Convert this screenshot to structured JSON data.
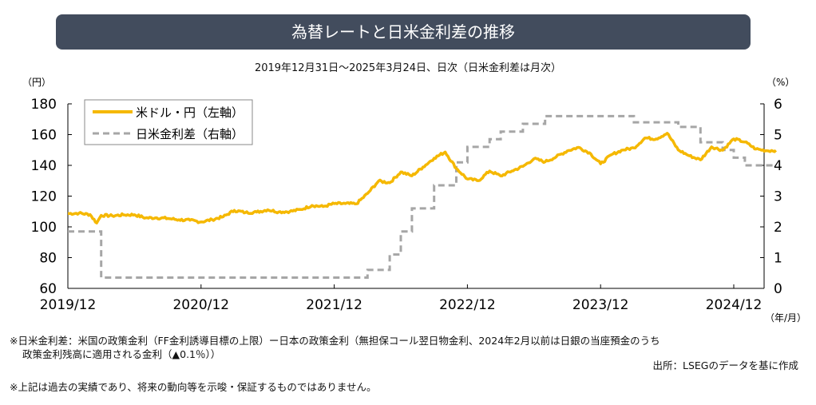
{
  "title": "為替レートと日米金利差の推移",
  "subtitle": "2019年12月31日～2025年3月24日、日次（日米金利差は月次）",
  "notes": {
    "line1": "※日米金利差：米国の政策金利（FF金利誘導目標の上限）ー日本の政策金利（無担保コール翌日物金利、2024年2月以前は日銀の当座預金のうち",
    "line2": "政策金利残高に適用される金利（▲0.1％））",
    "source": "出所：LSEGのデータを基に作成",
    "disclaimer": "※上記は過去の実績であり、将来の動向等を示唆・保証するものではありません。"
  },
  "chart_data": {
    "type": "line",
    "left_unit": "（円）",
    "right_unit": "（%）",
    "x_unit": "（年/月）",
    "ylim_left": [
      60,
      180
    ],
    "yticks_left": [
      "60",
      "80",
      "100",
      "120",
      "140",
      "160",
      "180"
    ],
    "ylim_right": [
      0,
      6
    ],
    "yticks_right": [
      "0",
      "1",
      "2",
      "3",
      "4",
      "5",
      "6"
    ],
    "xticks": [
      "2019/12",
      "2020/12",
      "2021/12",
      "2022/12",
      "2023/12",
      "2024/12"
    ],
    "x_range_months": [
      0,
      63.8
    ],
    "legend": {
      "placement": "top-left",
      "entries": [
        "米ドル・円（左軸）",
        "日米金利差（右軸）"
      ]
    },
    "colors": {
      "usdjpy": "#f5b800",
      "diff": "#a6a6a6"
    },
    "series": [
      {
        "name": "米ドル・円（左軸）",
        "axis": "left",
        "months": [
          0,
          1,
          2,
          2.6,
          3,
          4,
          5,
          6,
          7,
          8,
          9,
          10,
          11,
          12,
          13,
          14,
          15,
          16,
          17,
          18,
          19,
          20,
          21,
          22,
          23,
          24,
          25,
          26,
          27,
          28,
          29,
          30,
          31,
          32,
          33,
          34,
          35,
          36,
          37,
          38,
          39,
          40,
          41,
          42,
          43,
          44,
          45,
          46,
          47,
          48,
          49,
          50,
          51,
          52,
          53,
          54,
          55,
          56,
          57,
          58,
          59,
          60,
          61,
          62,
          63,
          63.8
        ],
        "values": [
          108.6,
          108.9,
          108.0,
          102.5,
          107.5,
          107.2,
          107.8,
          107.9,
          105.8,
          105.9,
          105.5,
          104.6,
          104.3,
          103.2,
          104.7,
          106.6,
          110.7,
          109.3,
          109.6,
          111.1,
          109.7,
          110.0,
          111.3,
          113.9,
          113.2,
          115.1,
          115.1,
          115.0,
          121.7,
          129.8,
          128.7,
          135.7,
          133.2,
          138.9,
          144.7,
          148.7,
          138.0,
          131.1,
          130.1,
          136.3,
          133.1,
          136.3,
          139.3,
          144.3,
          142.3,
          145.5,
          149.4,
          151.7,
          148.2,
          141.0,
          147.0,
          150.0,
          151.3,
          157.8,
          157.2,
          160.9,
          150.0,
          146.2,
          143.6,
          152.0,
          149.8,
          157.2,
          155.2,
          150.6,
          149.5,
          149.8
        ]
      },
      {
        "name": "日米金利差（右軸）",
        "axis": "right",
        "step": true,
        "months": [
          0,
          3,
          27,
          29,
          30,
          31,
          33,
          35,
          36,
          38,
          39,
          41,
          43,
          51,
          55,
          57,
          59,
          60,
          61,
          63.8
        ],
        "values": [
          1.85,
          0.35,
          0.6,
          1.1,
          1.85,
          2.6,
          3.35,
          4.1,
          4.6,
          4.85,
          5.1,
          5.35,
          5.6,
          5.4,
          5.25,
          4.75,
          4.5,
          4.25,
          4.0,
          4.0
        ]
      }
    ]
  }
}
